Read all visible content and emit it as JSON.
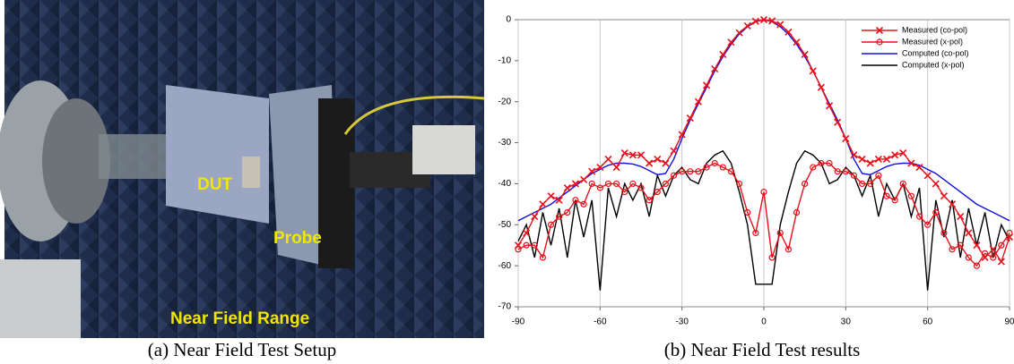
{
  "photo": {
    "caption": "(a) Near Field Test Setup",
    "labels": [
      "DUT",
      "Probe",
      "Near Field Range"
    ]
  },
  "chart_data": {
    "type": "line",
    "caption": "(b) Near Field Test results",
    "x": [
      -90,
      -87,
      -84,
      -81,
      -78,
      -75,
      -72,
      -69,
      -66,
      -63,
      -60,
      -57,
      -54,
      -51,
      -48,
      -45,
      -42,
      -39,
      -36,
      -33,
      -30,
      -27,
      -24,
      -21,
      -18,
      -15,
      -12,
      -9,
      -6,
      -3,
      0,
      3,
      6,
      9,
      12,
      15,
      18,
      21,
      24,
      27,
      30,
      33,
      36,
      39,
      42,
      45,
      48,
      51,
      54,
      57,
      60,
      63,
      66,
      69,
      72,
      75,
      78,
      81,
      84,
      87,
      90
    ],
    "xlim": [
      -90,
      90
    ],
    "xticks": [
      -90,
      -60,
      -30,
      0,
      30,
      60,
      90
    ],
    "ylim": [
      -70,
      0
    ],
    "yticks": [
      -70,
      -60,
      -50,
      -40,
      -30,
      -20,
      -10,
      0
    ],
    "grid": "x",
    "legend": "upper right",
    "series": [
      {
        "name": "Measured (co-pol)",
        "color": "#e8101a",
        "marker": "x",
        "values": [
          -55,
          -52,
          -48,
          -45,
          -43,
          -44,
          -41,
          -40,
          -39,
          -37,
          -36,
          -34,
          -36,
          -32.5,
          -33,
          -33,
          -35,
          -34,
          -35,
          -32,
          -28,
          -24,
          -20,
          -16,
          -12,
          -8.5,
          -5.5,
          -3.2,
          -1.5,
          -0.4,
          0,
          -0.3,
          -1.2,
          -3,
          -5.5,
          -8.5,
          -12.5,
          -16.5,
          -21,
          -25,
          -29,
          -33,
          -34,
          -35,
          -34,
          -34,
          -33,
          -32.5,
          -35,
          -36,
          -38,
          -40,
          -43,
          -45,
          -48,
          -52,
          -55,
          -58,
          -56,
          -59,
          -53
        ]
      },
      {
        "name": "Measured (x-pol)",
        "color": "#e8101a",
        "marker": "o",
        "values": [
          -56,
          -55,
          -55,
          -58,
          -50,
          -48,
          -47,
          -44,
          -45,
          -40,
          -41,
          -40,
          -40,
          -42,
          -40,
          -41,
          -44,
          -42,
          -40,
          -38,
          -37,
          -37,
          -37,
          -36,
          -35,
          -36,
          -37,
          -40,
          -47,
          -52,
          -42,
          -58,
          -52,
          -56,
          -47,
          -40,
          -36,
          -35,
          -35,
          -37,
          -37,
          -38,
          -40,
          -40,
          -38,
          -43,
          -44,
          -40,
          -43,
          -48,
          -50,
          -47,
          -52,
          -56,
          -55,
          -58,
          -60,
          -57,
          -58,
          -55,
          -52
        ]
      },
      {
        "name": "Computed (co-pol)",
        "color": "#1010e0",
        "marker": "none",
        "values": [
          -49,
          -48,
          -47,
          -46,
          -45,
          -43.5,
          -42,
          -40.5,
          -39,
          -37.5,
          -36.5,
          -35.5,
          -35,
          -35,
          -35.2,
          -35.8,
          -36.8,
          -37.8,
          -37.5,
          -34,
          -29,
          -24.5,
          -20.5,
          -16.5,
          -12.5,
          -9,
          -6,
          -3.5,
          -1.7,
          -0.5,
          0,
          -0.5,
          -1.7,
          -3.5,
          -6,
          -9,
          -12.5,
          -16.5,
          -20.5,
          -24.5,
          -29,
          -34,
          -37.5,
          -37.8,
          -36.8,
          -35.8,
          -35.2,
          -35,
          -35,
          -35.5,
          -36.5,
          -37.5,
          -39,
          -40.5,
          -42,
          -43.5,
          -45,
          -46,
          -47,
          -48,
          -49
        ]
      },
      {
        "name": "Computed (x-pol)",
        "color": "#000000",
        "marker": "none",
        "values": [
          -54,
          -50,
          -58,
          -47,
          -55,
          -46,
          -58,
          -44,
          -53,
          -44,
          -66,
          -41,
          -48,
          -40,
          -44,
          -40,
          -48,
          -38,
          -43,
          -38,
          -36,
          -39,
          -40,
          -35,
          -33,
          -32,
          -35,
          -42,
          -50,
          -64.5,
          -64.5,
          -64.5,
          -50,
          -42,
          -35,
          -32,
          -33,
          -35,
          -40,
          -39,
          -36,
          -38,
          -43,
          -38,
          -48,
          -40,
          -44,
          -40,
          -48,
          -41,
          -66,
          -44,
          -53,
          -44,
          -58,
          -46,
          -55,
          -47,
          -58,
          -50,
          -54
        ]
      }
    ]
  }
}
